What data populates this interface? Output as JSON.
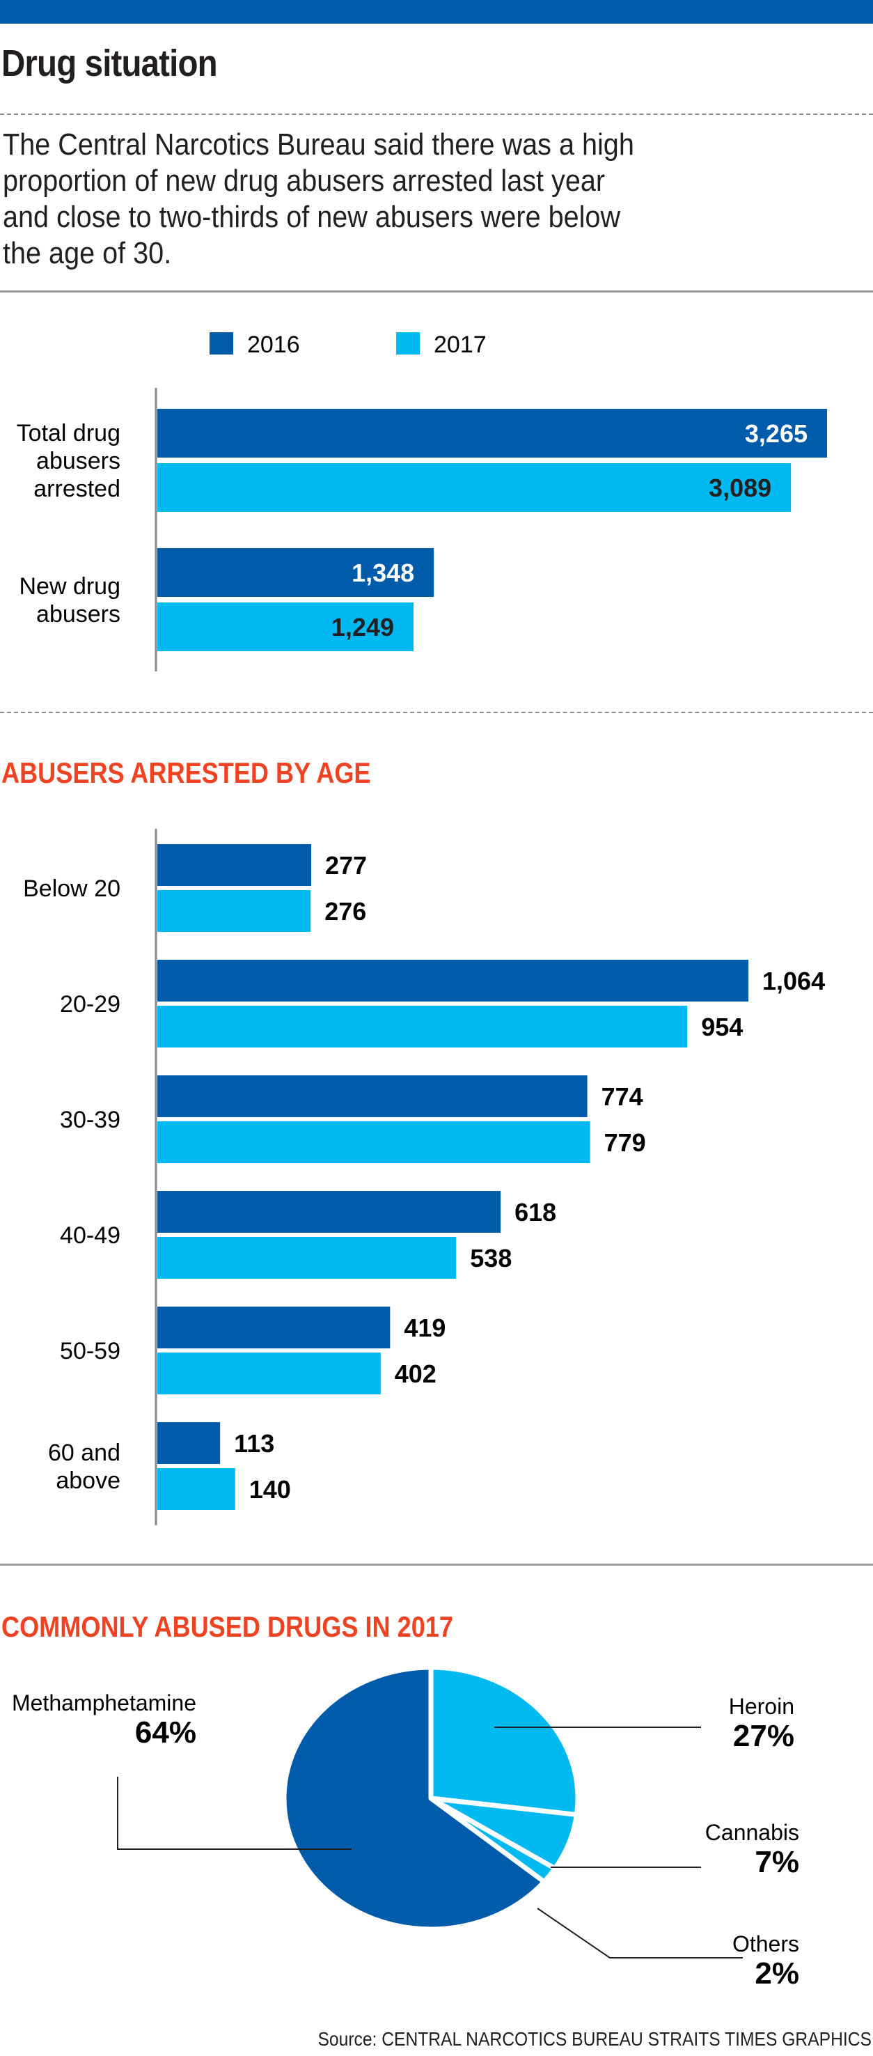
{
  "header": {
    "title": "Drug situation",
    "intro_lines": [
      "The Central Narcotics Bureau said there was a high",
      "proportion of new drug abusers arrested last year",
      "and close to two-thirds of new abusers were below",
      "the age of 30."
    ]
  },
  "colors": {
    "2016": "#005bab",
    "2017": "#00b9f1",
    "accent": "#ee4323",
    "topbar": "#005bab"
  },
  "chart_data": [
    {
      "type": "bar",
      "orientation": "horizontal",
      "title": "",
      "legend": [
        "2016",
        "2017"
      ],
      "legend_placement": "top",
      "categories": [
        [
          "Total drug",
          "abusers",
          "arrested"
        ],
        [
          "New drug",
          "abusers"
        ]
      ],
      "series": [
        {
          "name": "2016",
          "values": [
            3265,
            1348
          ],
          "labels": [
            "3,265",
            "1,348"
          ]
        },
        {
          "name": "2017",
          "values": [
            3089,
            1249
          ],
          "labels": [
            "3,089",
            "1,249"
          ]
        }
      ],
      "grid": false
    },
    {
      "type": "bar",
      "orientation": "horizontal",
      "title": "ABUSERS ARRESTED BY AGE",
      "categories": [
        [
          "Below 20"
        ],
        [
          "20-29"
        ],
        [
          "30-39"
        ],
        [
          "40-49"
        ],
        [
          "50-59"
        ],
        [
          "60 and",
          "above"
        ]
      ],
      "series": [
        {
          "name": "2016",
          "values": [
            277,
            1064,
            774,
            618,
            419,
            113
          ],
          "labels": [
            "277",
            "1,064",
            "774",
            "618",
            "419",
            "113"
          ]
        },
        {
          "name": "2017",
          "values": [
            276,
            954,
            779,
            538,
            402,
            140
          ],
          "labels": [
            "276",
            "954",
            "779",
            "538",
            "402",
            "140"
          ]
        }
      ],
      "grid": false
    },
    {
      "type": "pie",
      "title": "COMMONLY ABUSED DRUGS IN 2017",
      "slices": [
        {
          "name": "Heroin",
          "value": 27,
          "label": "27%",
          "color": "#00b9f1"
        },
        {
          "name": "Cannabis",
          "value": 7,
          "label": "7%",
          "color": "#00b9f1"
        },
        {
          "name": "Others",
          "value": 2,
          "label": "2%",
          "color": "#00b9f1"
        },
        {
          "name": "Methamphetamine",
          "value": 64,
          "label": "64%",
          "color": "#005bab"
        }
      ]
    }
  ],
  "footer": {
    "source": "Source: CENTRAL NARCOTICS BUREAU   STRAITS TIMES GRAPHICS"
  }
}
